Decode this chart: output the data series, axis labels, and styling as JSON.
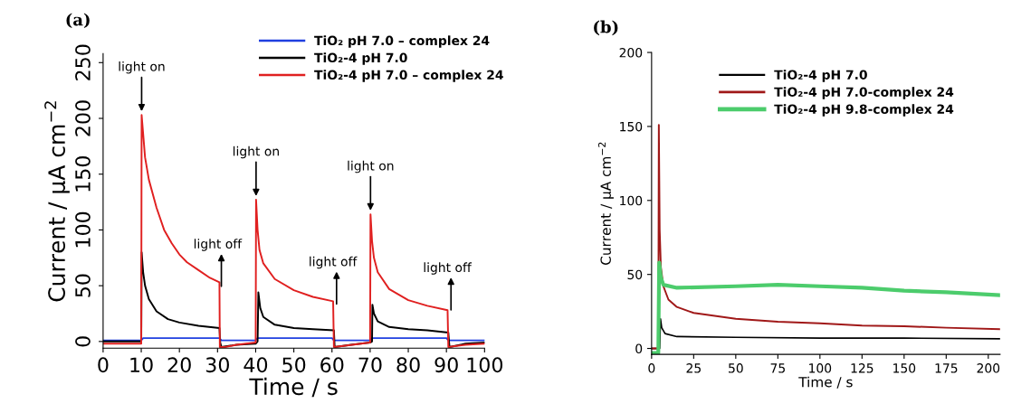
{
  "chart_data": [
    {
      "type": "line",
      "title": "(a)",
      "xlabel": "Time / s",
      "ylabel": "Current / μA cm$^{−2}$",
      "xlim": [
        0,
        100
      ],
      "ylim": [
        -6,
        258
      ],
      "xticks": [
        0,
        10,
        20,
        30,
        40,
        50,
        60,
        70,
        80,
        90,
        100
      ],
      "yticks": [
        0,
        50,
        100,
        150,
        200,
        250
      ],
      "legend": "top right",
      "grid": false,
      "marker": "none",
      "line_style": "solid",
      "series": [
        {
          "name": "TiO₂ pH 7.0 – complex 24",
          "color": "#1f3fe0",
          "x": [
            0,
            10,
            10.5,
            30.5,
            31,
            40,
            40.5,
            60,
            60.5,
            70,
            70.5,
            90,
            90.5,
            100
          ],
          "values": [
            1,
            1,
            3,
            3,
            1,
            1,
            3,
            3,
            1,
            1,
            3,
            3,
            1,
            1
          ]
        },
        {
          "name": "TiO₂-4 pH 7.0",
          "color": "#000000",
          "x": [
            0,
            10,
            10.1,
            10.5,
            11,
            12,
            14,
            17,
            20,
            25,
            30.5,
            30.7,
            31,
            35,
            40,
            40.5,
            40.7,
            41.2,
            42,
            45,
            50,
            55,
            60.5,
            60.7,
            65,
            70,
            70.5,
            70.6,
            71,
            72,
            75,
            80,
            85,
            90.5,
            90.8,
            95,
            100
          ],
          "values": [
            0,
            0,
            80,
            62,
            50,
            38,
            27,
            20,
            17,
            14,
            12,
            -1,
            -5,
            -3,
            -2,
            0,
            44,
            30,
            22,
            15,
            12,
            11,
            10,
            -5,
            -3,
            -1,
            0,
            33,
            25,
            18,
            13,
            11,
            10,
            8,
            -5,
            -2,
            -1
          ]
        },
        {
          "name": "TiO₂-4 pH 7.0 – complex 24",
          "color": "#e02020",
          "x": [
            0,
            10,
            10.1,
            11,
            12,
            14,
            16,
            18,
            20,
            22,
            25,
            28,
            30.5,
            30.6,
            32,
            35,
            40,
            40.1,
            40.5,
            41,
            42,
            45,
            50,
            55,
            60.3,
            60.5,
            63,
            70,
            70.1,
            70.5,
            71,
            72,
            75,
            80,
            85,
            90.3,
            90.5,
            95,
            100
          ],
          "values": [
            -2,
            -2,
            203,
            165,
            145,
            120,
            100,
            88,
            78,
            71,
            64,
            57,
            53,
            -5,
            -5,
            -3,
            -1,
            127,
            100,
            82,
            70,
            56,
            46,
            40,
            36,
            -5,
            -4,
            -1,
            114,
            90,
            75,
            62,
            47,
            37,
            32,
            28,
            -5,
            -3,
            -2
          ]
        }
      ],
      "annotations": [
        {
          "text": "light on",
          "x": 10.1,
          "y": 203
        },
        "light off",
        {
          "text": "light on",
          "x": 40.1,
          "y": 127
        },
        "light off",
        {
          "text": "light on",
          "x": 70.1,
          "y": 114
        },
        "light off"
      ]
    },
    {
      "type": "line",
      "title": "(b)",
      "xlabel": "Time / s",
      "ylabel": "Current / μA cm$^{−2}$",
      "xlim": [
        0,
        207
      ],
      "ylim": [
        -4,
        200
      ],
      "xticks": [
        0,
        25,
        50,
        75,
        100,
        125,
        150,
        175,
        200
      ],
      "yticks": [
        0,
        50,
        100,
        150,
        200
      ],
      "legend": "top right",
      "grid": false,
      "marker": "none",
      "line_style": "solid",
      "series": [
        {
          "name": "TiO₂-4 pH 7.0",
          "color": "#000000",
          "x": [
            0,
            4.8,
            5.3,
            6,
            8,
            15,
            50,
            100,
            150,
            207
          ],
          "values": [
            0,
            0,
            20,
            14,
            10,
            8,
            7.5,
            7,
            7,
            6.5
          ]
        },
        {
          "name": "TiO₂-4 pH 7.0-complex 24",
          "color": "#a01818",
          "x": [
            0,
            4,
            4.3,
            4.8,
            5.5,
            7,
            10,
            15,
            25,
            50,
            75,
            100,
            125,
            150,
            175,
            207
          ],
          "values": [
            0,
            0,
            151,
            80,
            55,
            42,
            33,
            28,
            24,
            20,
            18,
            17,
            15.5,
            15,
            14,
            13
          ]
        },
        {
          "name": "TiO₂-4 pH 9.8-complex 24",
          "color": "#4ccc6c",
          "x": [
            0,
            4,
            4.5,
            5.5,
            7,
            15,
            50,
            75,
            100,
            125,
            150,
            175,
            207
          ],
          "values": [
            -3,
            -3,
            58,
            48,
            43,
            41,
            42,
            43,
            42,
            41,
            39,
            38,
            36
          ]
        }
      ]
    }
  ]
}
